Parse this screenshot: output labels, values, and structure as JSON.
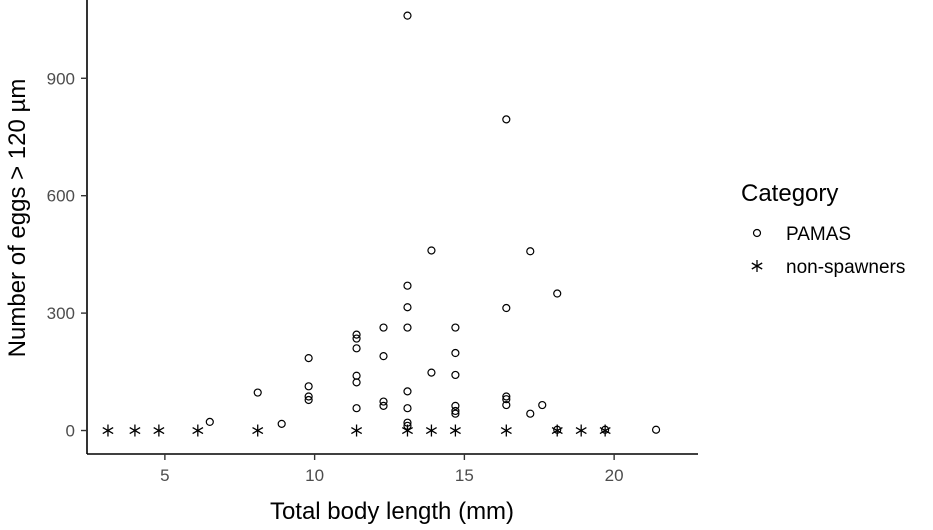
{
  "chart_data": {
    "type": "scatter",
    "xlabel": "Total body length (mm)",
    "ylabel": "Number of eggs > 120 µm",
    "xlim": [
      2.4,
      22.8
    ],
    "ylim": [
      -60,
      1100
    ],
    "x_ticks": [
      5,
      10,
      15,
      20
    ],
    "y_ticks": [
      0,
      300,
      600,
      900
    ],
    "grid": false,
    "legend": {
      "title": "Category",
      "position": "right"
    },
    "series": [
      {
        "name": "PAMAS",
        "marker": "open-circle",
        "points": [
          [
            6.5,
            22
          ],
          [
            8.1,
            97
          ],
          [
            8.9,
            17
          ],
          [
            9.8,
            185
          ],
          [
            9.8,
            113
          ],
          [
            9.8,
            87
          ],
          [
            9.8,
            78
          ],
          [
            11.4,
            245
          ],
          [
            11.4,
            235
          ],
          [
            11.4,
            210
          ],
          [
            11.4,
            140
          ],
          [
            11.4,
            123
          ],
          [
            11.4,
            57
          ],
          [
            12.3,
            263
          ],
          [
            12.3,
            190
          ],
          [
            12.3,
            74
          ],
          [
            12.3,
            63
          ],
          [
            13.1,
            1060
          ],
          [
            13.1,
            370
          ],
          [
            13.1,
            315
          ],
          [
            13.1,
            263
          ],
          [
            13.1,
            100
          ],
          [
            13.1,
            57
          ],
          [
            13.1,
            20
          ],
          [
            13.1,
            12
          ],
          [
            13.9,
            460
          ],
          [
            13.9,
            148
          ],
          [
            14.7,
            263
          ],
          [
            14.7,
            198
          ],
          [
            14.7,
            142
          ],
          [
            14.7,
            63
          ],
          [
            14.7,
            50
          ],
          [
            14.7,
            43
          ],
          [
            16.4,
            795
          ],
          [
            16.4,
            313
          ],
          [
            16.4,
            87
          ],
          [
            16.4,
            80
          ],
          [
            16.4,
            65
          ],
          [
            17.2,
            458
          ],
          [
            17.2,
            43
          ],
          [
            17.6,
            65
          ],
          [
            18.1,
            350
          ],
          [
            18.1,
            2
          ],
          [
            19.7,
            2
          ],
          [
            21.4,
            2
          ]
        ]
      },
      {
        "name": "non-spawners",
        "marker": "asterisk",
        "points": [
          [
            3.1,
            0
          ],
          [
            4.0,
            0
          ],
          [
            4.8,
            0
          ],
          [
            6.1,
            0
          ],
          [
            8.1,
            0
          ],
          [
            11.4,
            0
          ],
          [
            13.1,
            0
          ],
          [
            13.9,
            0
          ],
          [
            14.7,
            0
          ],
          [
            16.4,
            0
          ],
          [
            18.1,
            0
          ],
          [
            18.9,
            0
          ],
          [
            19.7,
            0
          ]
        ]
      }
    ]
  }
}
